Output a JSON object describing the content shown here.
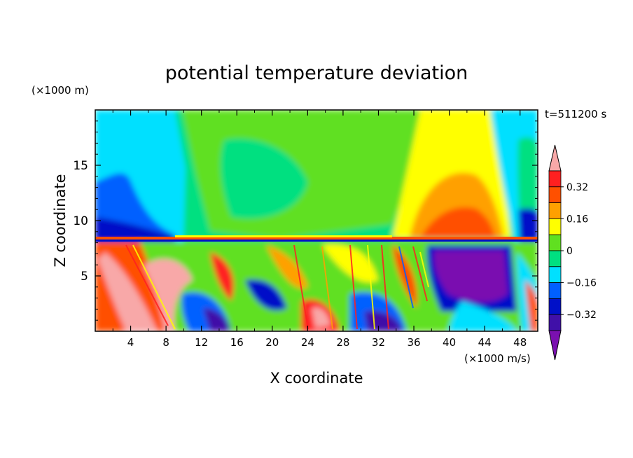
{
  "chart_data": {
    "type": "heatmap",
    "title": "potential temperature deviation",
    "xlabel": "X coordinate",
    "ylabel": "Z coordinate",
    "x_unit": "(×1000 m/s)",
    "y_unit": "(×1000 m)",
    "time_label": "t=511200 s",
    "xlim": [
      0,
      50
    ],
    "ylim": [
      0,
      20
    ],
    "x_ticks": [
      4,
      8,
      12,
      16,
      20,
      24,
      28,
      32,
      36,
      40,
      44,
      48
    ],
    "y_ticks": [
      5,
      10,
      15
    ],
    "colorbar": {
      "levels": [
        -0.48,
        -0.4,
        -0.32,
        -0.24,
        -0.16,
        -0.08,
        0,
        0.08,
        0.16,
        0.24,
        0.32,
        0.4
      ],
      "labels": [
        "0.32",
        "0.16",
        "0",
        "−0.16",
        "−0.32"
      ],
      "label_values": [
        0.32,
        0.16,
        0,
        -0.16,
        -0.32
      ],
      "colors": [
        "#7a10b0",
        "#4010a8",
        "#0010c8",
        "#0060ff",
        "#00e0ff",
        "#00e080",
        "#60e020",
        "#ffff00",
        "#ffa000",
        "#ff5000",
        "#ff2020",
        "#f8a8a8"
      ],
      "extend": "both"
    }
  }
}
